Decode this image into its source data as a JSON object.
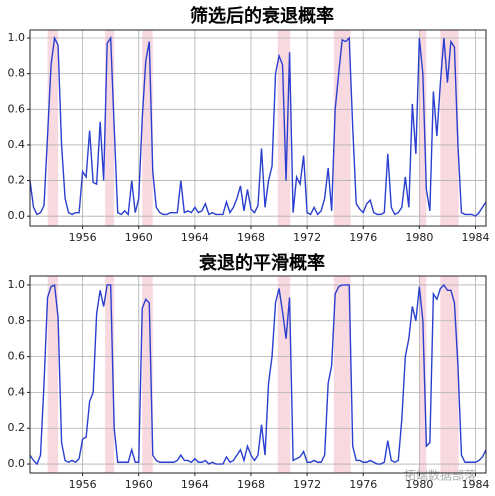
{
  "chart_data": [
    {
      "type": "line",
      "title": "筛选后的衰退概率",
      "x": [
        1952.25,
        1952.5,
        1952.75,
        1953,
        1953.25,
        1953.5,
        1953.75,
        1954,
        1954.25,
        1954.5,
        1954.75,
        1955,
        1955.25,
        1955.5,
        1955.75,
        1956,
        1956.25,
        1956.5,
        1956.75,
        1957,
        1957.25,
        1957.5,
        1957.75,
        1958,
        1958.25,
        1958.5,
        1958.75,
        1959,
        1959.25,
        1959.5,
        1959.75,
        1960,
        1960.25,
        1960.5,
        1960.75,
        1961,
        1961.25,
        1961.5,
        1961.75,
        1962,
        1962.25,
        1962.5,
        1962.75,
        1963,
        1963.25,
        1963.5,
        1963.75,
        1964,
        1964.25,
        1964.5,
        1964.75,
        1965,
        1965.25,
        1965.5,
        1965.75,
        1966,
        1966.25,
        1966.5,
        1966.75,
        1967,
        1967.25,
        1967.5,
        1967.75,
        1968,
        1968.25,
        1968.5,
        1968.75,
        1969,
        1969.25,
        1969.5,
        1969.75,
        1970,
        1970.25,
        1970.5,
        1970.75,
        1971,
        1971.25,
        1971.5,
        1971.75,
        1972,
        1972.25,
        1972.5,
        1972.75,
        1973,
        1973.25,
        1973.5,
        1973.75,
        1974,
        1974.25,
        1974.5,
        1974.75,
        1975,
        1975.25,
        1975.5,
        1975.75,
        1976,
        1976.25,
        1976.5,
        1976.75,
        1977,
        1977.25,
        1977.5,
        1977.75,
        1978,
        1978.25,
        1978.5,
        1978.75,
        1979,
        1979.25,
        1979.5,
        1979.75,
        1980,
        1980.25,
        1980.5,
        1980.75,
        1981,
        1981.25,
        1981.5,
        1981.75,
        1982,
        1982.25,
        1982.5,
        1982.75,
        1983,
        1983.25,
        1983.5,
        1983.75,
        1984,
        1984.25,
        1984.5,
        1984.75
      ],
      "series": [
        {
          "color": "#2a3fcf",
          "values": [
            0.2,
            0.05,
            0.01,
            0.02,
            0.06,
            0.45,
            0.85,
            1.0,
            0.96,
            0.4,
            0.1,
            0.02,
            0.01,
            0.02,
            0.02,
            0.25,
            0.22,
            0.48,
            0.19,
            0.18,
            0.53,
            0.2,
            0.97,
            1.0,
            0.5,
            0.02,
            0.01,
            0.03,
            0.01,
            0.2,
            0.02,
            0.1,
            0.55,
            0.87,
            0.98,
            0.25,
            0.05,
            0.02,
            0.01,
            0.01,
            0.02,
            0.02,
            0.02,
            0.2,
            0.02,
            0.03,
            0.02,
            0.05,
            0.02,
            0.03,
            0.07,
            0.01,
            0.02,
            0.01,
            0.01,
            0.01,
            0.08,
            0.02,
            0.05,
            0.1,
            0.17,
            0.03,
            0.15,
            0.04,
            0.02,
            0.06,
            0.38,
            0.05,
            0.2,
            0.28,
            0.8,
            0.9,
            0.85,
            0.2,
            0.92,
            0.02,
            0.22,
            0.18,
            0.34,
            0.02,
            0.01,
            0.05,
            0.01,
            0.03,
            0.1,
            0.27,
            0.03,
            0.6,
            0.8,
            0.99,
            0.98,
            1.0,
            0.5,
            0.07,
            0.04,
            0.02,
            0.07,
            0.09,
            0.02,
            0.01,
            0.01,
            0.02,
            0.35,
            0.05,
            0.01,
            0.02,
            0.05,
            0.22,
            0.05,
            0.63,
            0.35,
            1.0,
            0.8,
            0.15,
            0.03,
            0.7,
            0.45,
            0.75,
            1.0,
            0.75,
            0.98,
            0.95,
            0.4,
            0.02,
            0.01,
            0.01,
            0.01,
            0.0,
            0.02,
            0.05,
            0.08
          ]
        }
      ],
      "shaded": [
        [
          1953.5,
          1954.25
        ],
        [
          1957.6,
          1958.25
        ],
        [
          1960.25,
          1961.0
        ],
        [
          1969.9,
          1970.8
        ],
        [
          1973.9,
          1975.1
        ],
        [
          1980.0,
          1980.5
        ],
        [
          1981.5,
          1982.8
        ]
      ],
      "shade_color": "#f7cfd8",
      "xlim": [
        1952.25,
        1984.75
      ],
      "ylim": [
        -0.055,
        1.045
      ],
      "xticks": [
        1956,
        1960,
        1964,
        1968,
        1972,
        1976,
        1980,
        1984
      ],
      "yticks": [
        {
          "value": 0,
          "label": "0.0"
        },
        {
          "value": 0.2,
          "label": "0.2"
        },
        {
          "value": 0.4,
          "label": "0.4"
        },
        {
          "value": 0.6,
          "label": "0.6"
        },
        {
          "value": 0.8,
          "label": "0.8"
        },
        {
          "value": 1,
          "label": "1.0"
        }
      ],
      "grid": true
    },
    {
      "type": "line",
      "title": "衰退的平滑概率",
      "x": [
        1952.25,
        1952.5,
        1952.75,
        1953,
        1953.25,
        1953.5,
        1953.75,
        1954,
        1954.25,
        1954.5,
        1954.75,
        1955,
        1955.25,
        1955.5,
        1955.75,
        1956,
        1956.25,
        1956.5,
        1956.75,
        1957,
        1957.25,
        1957.5,
        1957.75,
        1958,
        1958.25,
        1958.5,
        1958.75,
        1959,
        1959.25,
        1959.5,
        1959.75,
        1960,
        1960.25,
        1960.5,
        1960.75,
        1961,
        1961.25,
        1961.5,
        1961.75,
        1962,
        1962.25,
        1962.5,
        1962.75,
        1963,
        1963.25,
        1963.5,
        1963.75,
        1964,
        1964.25,
        1964.5,
        1964.75,
        1965,
        1965.25,
        1965.5,
        1965.75,
        1966,
        1966.25,
        1966.5,
        1966.75,
        1967,
        1967.25,
        1967.5,
        1967.75,
        1968,
        1968.25,
        1968.5,
        1968.75,
        1969,
        1969.25,
        1969.5,
        1969.75,
        1970,
        1970.25,
        1970.5,
        1970.75,
        1971,
        1971.25,
        1971.5,
        1971.75,
        1972,
        1972.25,
        1972.5,
        1972.75,
        1973,
        1973.25,
        1973.5,
        1973.75,
        1974,
        1974.25,
        1974.5,
        1974.75,
        1975,
        1975.25,
        1975.5,
        1975.75,
        1976,
        1976.25,
        1976.5,
        1976.75,
        1977,
        1977.25,
        1977.5,
        1977.75,
        1978,
        1978.25,
        1978.5,
        1978.75,
        1979,
        1979.25,
        1979.5,
        1979.75,
        1980,
        1980.25,
        1980.5,
        1980.75,
        1981,
        1981.25,
        1981.5,
        1981.75,
        1982,
        1982.25,
        1982.5,
        1982.75,
        1983,
        1983.25,
        1983.5,
        1983.75,
        1984,
        1984.25,
        1984.5,
        1984.75
      ],
      "series": [
        {
          "color": "#2a3fcf",
          "values": [
            0.05,
            0.02,
            0.0,
            0.05,
            0.45,
            0.93,
            0.99,
            1.0,
            0.82,
            0.12,
            0.02,
            0.01,
            0.02,
            0.01,
            0.03,
            0.14,
            0.15,
            0.35,
            0.4,
            0.84,
            0.97,
            0.88,
            1.0,
            1.0,
            0.2,
            0.01,
            0.01,
            0.01,
            0.01,
            0.08,
            0.01,
            0.01,
            0.87,
            0.92,
            0.9,
            0.05,
            0.02,
            0.01,
            0.01,
            0.01,
            0.01,
            0.01,
            0.02,
            0.05,
            0.02,
            0.02,
            0.01,
            0.03,
            0.01,
            0.01,
            0.02,
            0.0,
            0.01,
            0.0,
            0.0,
            0.0,
            0.04,
            0.01,
            0.02,
            0.05,
            0.08,
            0.02,
            0.1,
            0.05,
            0.02,
            0.05,
            0.22,
            0.05,
            0.45,
            0.6,
            0.9,
            0.98,
            0.85,
            0.7,
            0.93,
            0.02,
            0.03,
            0.04,
            0.07,
            0.01,
            0.01,
            0.02,
            0.01,
            0.01,
            0.05,
            0.45,
            0.55,
            0.95,
            0.99,
            1.0,
            1.0,
            1.0,
            0.1,
            0.02,
            0.02,
            0.01,
            0.01,
            0.02,
            0.01,
            0.0,
            0.0,
            0.01,
            0.13,
            0.02,
            0.01,
            0.02,
            0.25,
            0.6,
            0.7,
            0.88,
            0.8,
            0.99,
            0.8,
            0.1,
            0.12,
            0.95,
            0.92,
            0.98,
            1.0,
            0.97,
            0.97,
            0.9,
            0.55,
            0.05,
            0.01,
            0.01,
            0.01,
            0.01,
            0.02,
            0.04,
            0.08
          ]
        }
      ],
      "shaded": [
        [
          1953.5,
          1954.25
        ],
        [
          1957.6,
          1958.25
        ],
        [
          1960.25,
          1961.0
        ],
        [
          1969.9,
          1970.8
        ],
        [
          1973.9,
          1975.1
        ],
        [
          1980.0,
          1980.5
        ],
        [
          1981.5,
          1982.8
        ]
      ],
      "shade_color": "#f7cfd8",
      "xlim": [
        1952.25,
        1984.75
      ],
      "ylim": [
        -0.05,
        1.05
      ],
      "xticks": [
        1956,
        1960,
        1964,
        1968,
        1972,
        1976,
        1980,
        1984
      ],
      "yticks": [
        {
          "value": 0,
          "label": "0.0"
        },
        {
          "value": 0.2,
          "label": "0.2"
        },
        {
          "value": 0.4,
          "label": "0.4"
        },
        {
          "value": 0.6,
          "label": "0.6"
        },
        {
          "value": 0.8,
          "label": "0.8"
        },
        {
          "value": 1,
          "label": "1.0"
        }
      ],
      "grid": true
    }
  ],
  "watermark": "拓端数据部落"
}
